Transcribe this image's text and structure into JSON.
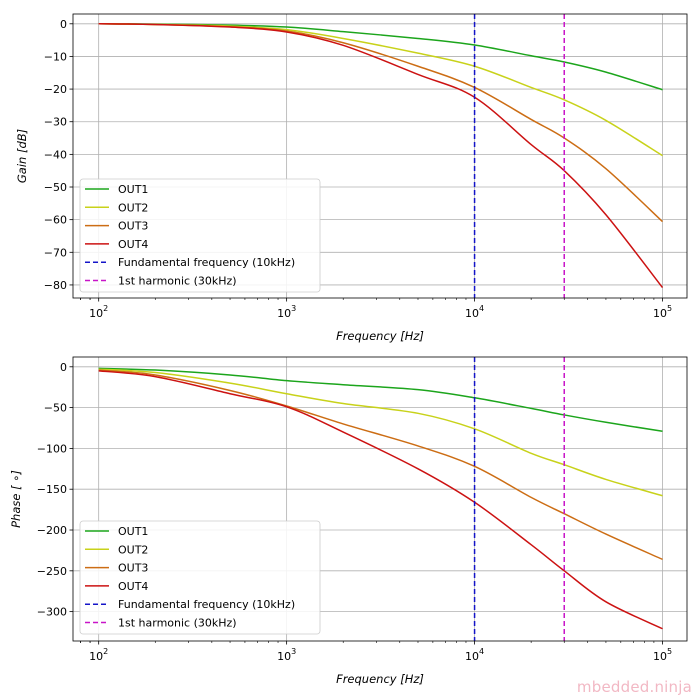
{
  "watermark": "mbedded.ninja",
  "chart_data": [
    {
      "type": "line",
      "title": "",
      "xscale": "log",
      "xlabel": "Frequency [Hz]",
      "ylabel": "Gain [dB]",
      "xlim": [
        73,
        135000
      ],
      "ylim": [
        -84,
        3
      ],
      "xticks": [
        100,
        1000,
        10000,
        100000
      ],
      "xtick_labels": [
        [
          "10",
          "2"
        ],
        [
          "10",
          "3"
        ],
        [
          "10",
          "4"
        ],
        [
          "10",
          "5"
        ]
      ],
      "yticks": [
        0,
        -10,
        -20,
        -30,
        -40,
        -50,
        -60,
        -70,
        -80
      ],
      "ytick_labels": [
        "0",
        "−10",
        "−20",
        "−30",
        "−40",
        "−50",
        "−60",
        "−70",
        "−80"
      ],
      "grid": true,
      "legend_position": "lower-left",
      "x": [
        100,
        200,
        500,
        1000,
        2000,
        5000,
        10000,
        20000,
        30000,
        50000,
        100000
      ],
      "series": [
        {
          "name": "OUT1",
          "color": "#1ca51c",
          "style": "solid",
          "values": [
            0,
            -0.1,
            -0.4,
            -1.0,
            -2.4,
            -4.5,
            -6.5,
            -9.8,
            -11.7,
            -14.8,
            -20.2
          ]
        },
        {
          "name": "OUT2",
          "color": "#c8d21a",
          "style": "solid",
          "values": [
            0,
            -0.2,
            -0.7,
            -1.8,
            -4.5,
            -9.0,
            -13.0,
            -19.5,
            -23.3,
            -29.6,
            -40.4
          ]
        },
        {
          "name": "OUT3",
          "color": "#cc6d14",
          "style": "solid",
          "values": [
            0,
            -0.2,
            -0.9,
            -2.2,
            -5.8,
            -13.0,
            -19.5,
            -29.3,
            -35.0,
            -44.4,
            -60.6
          ]
        },
        {
          "name": "OUT4",
          "color": "#cc1212",
          "style": "solid",
          "values": [
            0,
            -0.2,
            -1.0,
            -2.5,
            -6.6,
            -15.5,
            -22.5,
            -37.0,
            -45.0,
            -58.5,
            -80.8
          ]
        }
      ],
      "vlines": [
        {
          "name": "Fundamental frequency (10kHz)",
          "x": 10000,
          "color": "#1414c8",
          "style": "dashed"
        },
        {
          "name": "1st harmonic (30kHz)",
          "x": 30000,
          "color": "#c814c8",
          "style": "dashed"
        }
      ]
    },
    {
      "type": "line",
      "title": "",
      "xscale": "log",
      "xlabel": "Frequency [Hz]",
      "ylabel": "Phase [ ∘]",
      "xlim": [
        73,
        135000
      ],
      "ylim": [
        -336,
        12
      ],
      "xticks": [
        100,
        1000,
        10000,
        100000
      ],
      "xtick_labels": [
        [
          "10",
          "2"
        ],
        [
          "10",
          "3"
        ],
        [
          "10",
          "4"
        ],
        [
          "10",
          "5"
        ]
      ],
      "yticks": [
        0,
        -50,
        -100,
        -150,
        -200,
        -250,
        -300
      ],
      "ytick_labels": [
        "0",
        "−50",
        "−100",
        "−150",
        "−200",
        "−250",
        "−300"
      ],
      "grid": true,
      "legend_position": "lower-left",
      "x": [
        100,
        200,
        500,
        1000,
        2000,
        5000,
        10000,
        20000,
        30000,
        50000,
        100000
      ],
      "series": [
        {
          "name": "OUT1",
          "color": "#1ca51c",
          "style": "solid",
          "values": [
            -2,
            -4,
            -10,
            -17,
            -22,
            -28,
            -38,
            -51,
            -59,
            -68,
            -79
          ]
        },
        {
          "name": "OUT2",
          "color": "#c8d21a",
          "style": "solid",
          "values": [
            -3,
            -7,
            -20,
            -33,
            -45,
            -57,
            -76,
            -106,
            -120,
            -138,
            -158
          ]
        },
        {
          "name": "OUT3",
          "color": "#cc6d14",
          "style": "solid",
          "values": [
            -4,
            -10,
            -29,
            -48,
            -70,
            -97,
            -122,
            -160,
            -180,
            -205,
            -236
          ]
        },
        {
          "name": "OUT4",
          "color": "#cc1212",
          "style": "solid",
          "values": [
            -5,
            -12,
            -33,
            -49,
            -80,
            -125,
            -166,
            -218,
            -250,
            -288,
            -321
          ]
        }
      ],
      "vlines": [
        {
          "name": "Fundamental frequency (10kHz)",
          "x": 10000,
          "color": "#1414c8",
          "style": "dashed"
        },
        {
          "name": "1st harmonic (30kHz)",
          "x": 30000,
          "color": "#c814c8",
          "style": "dashed"
        }
      ]
    }
  ]
}
